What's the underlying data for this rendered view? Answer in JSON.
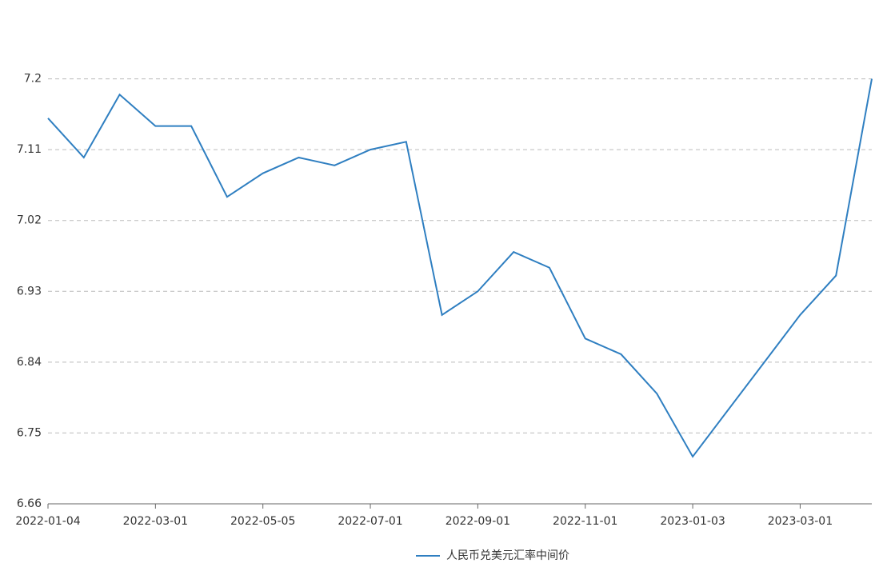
{
  "chart_data": {
    "type": "line",
    "categories": [
      "2022-01-04",
      null,
      null,
      "2022-03-01",
      null,
      null,
      "2022-05-05",
      null,
      null,
      "2022-07-01",
      null,
      null,
      "2022-09-01",
      null,
      null,
      "2022-11-01",
      null,
      null,
      "2023-01-03",
      null,
      null,
      "2023-03-01",
      null,
      null
    ],
    "series": [
      {
        "name": "人民币兑美元汇率中间价",
        "color": "#2f7fc1",
        "values": [
          7.15,
          7.1,
          7.18,
          7.14,
          7.14,
          7.05,
          7.08,
          7.1,
          7.09,
          7.11,
          7.12,
          6.9,
          6.93,
          6.98,
          6.96,
          6.87,
          6.85,
          6.8,
          6.72,
          6.78,
          6.84,
          6.9,
          6.95,
          7.2
        ]
      }
    ],
    "ylim": [
      6.66,
      7.29
    ],
    "yticks": [
      6.66,
      6.75,
      6.84,
      6.93,
      7.02,
      7.11,
      7.2
    ],
    "grid": true
  }
}
